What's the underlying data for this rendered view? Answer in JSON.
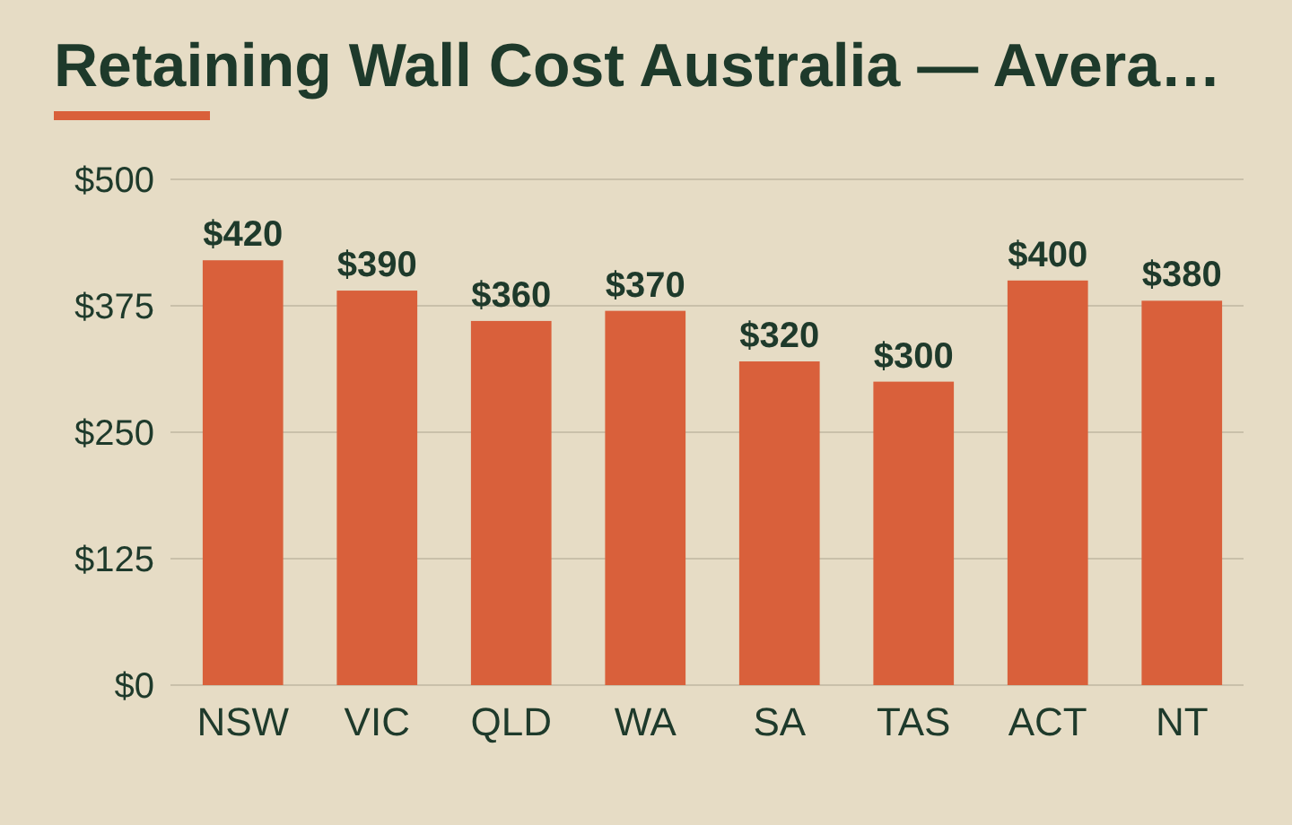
{
  "chart_data": {
    "type": "bar",
    "title": "Retaining Wall Cost Australia — Avera…",
    "categories": [
      "NSW",
      "VIC",
      "QLD",
      "WA",
      "SA",
      "TAS",
      "ACT",
      "NT"
    ],
    "values": [
      420,
      390,
      360,
      370,
      320,
      300,
      400,
      380
    ],
    "value_labels": [
      "$420",
      "$390",
      "$360",
      "$370",
      "$320",
      "$300",
      "$400",
      "$380"
    ],
    "color": "#d9603b",
    "ylim": [
      0,
      500
    ],
    "yticks": [
      {
        "value": 0,
        "label": "$0"
      },
      {
        "value": 125,
        "label": "$125"
      },
      {
        "value": 250,
        "label": "$250"
      },
      {
        "value": 375,
        "label": "$375"
      },
      {
        "value": 500,
        "label": "$500"
      }
    ],
    "grid": "y"
  }
}
